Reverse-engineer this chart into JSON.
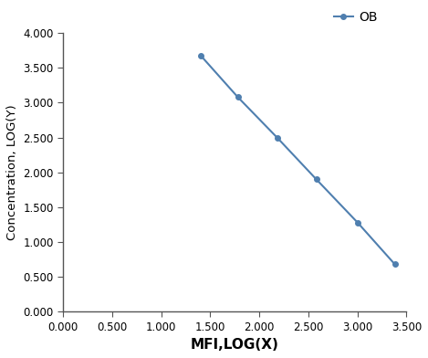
{
  "x": [
    1.4,
    1.78,
    2.18,
    2.58,
    3.0,
    3.38
  ],
  "y": [
    3.68,
    3.08,
    2.5,
    1.9,
    1.28,
    0.68
  ],
  "line_color": "#4f7faf",
  "marker": "o",
  "marker_size": 4,
  "line_width": 1.5,
  "legend_label": "OB",
  "xlabel": "MFI,LOG(X)",
  "ylabel": "Concentration, LOG(Y)",
  "xlim": [
    0.0,
    3.5
  ],
  "ylim": [
    0.0,
    4.0
  ],
  "xticks": [
    0.0,
    0.5,
    1.0,
    1.5,
    2.0,
    2.5,
    3.0,
    3.5
  ],
  "yticks": [
    0.0,
    0.5,
    1.0,
    1.5,
    2.0,
    2.5,
    3.0,
    3.5,
    4.0
  ],
  "xlabel_fontsize": 11,
  "ylabel_fontsize": 9.5,
  "legend_fontsize": 10,
  "tick_fontsize": 8.5,
  "background_color": "#ffffff",
  "spine_color": "#555555"
}
